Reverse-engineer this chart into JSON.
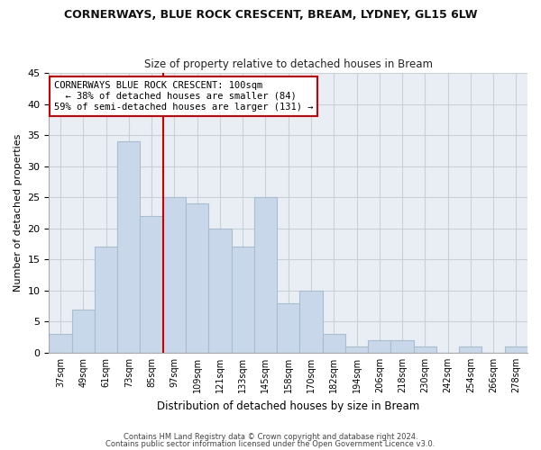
{
  "title": "CORNERWAYS, BLUE ROCK CRESCENT, BREAM, LYDNEY, GL15 6LW",
  "subtitle": "Size of property relative to detached houses in Bream",
  "xlabel": "Distribution of detached houses by size in Bream",
  "ylabel": "Number of detached properties",
  "bar_color": "#c8d8ea",
  "bar_edge_color": "#a8bece",
  "categories": [
    "37sqm",
    "49sqm",
    "61sqm",
    "73sqm",
    "85sqm",
    "97sqm",
    "109sqm",
    "121sqm",
    "133sqm",
    "145sqm",
    "158sqm",
    "170sqm",
    "182sqm",
    "194sqm",
    "206sqm",
    "218sqm",
    "230sqm",
    "242sqm",
    "254sqm",
    "266sqm",
    "278sqm"
  ],
  "values": [
    3,
    7,
    17,
    34,
    22,
    25,
    24,
    20,
    17,
    25,
    8,
    10,
    3,
    1,
    2,
    2,
    1,
    0,
    1,
    0,
    1
  ],
  "vline_color": "#cc0000",
  "ylim": [
    0,
    45
  ],
  "yticks": [
    0,
    5,
    10,
    15,
    20,
    25,
    30,
    35,
    40,
    45
  ],
  "annotation_title": "CORNERWAYS BLUE ROCK CRESCENT: 100sqm",
  "annotation_line1": "  ← 38% of detached houses are smaller (84)",
  "annotation_line2": "59% of semi-detached houses are larger (131) →",
  "ann_box_color": "#cc0000",
  "footnote1": "Contains HM Land Registry data © Crown copyright and database right 2024.",
  "footnote2": "Contains public sector information licensed under the Open Government Licence v3.0.",
  "bg_color": "#e8eef4",
  "grid_color": "#c8d0d8"
}
